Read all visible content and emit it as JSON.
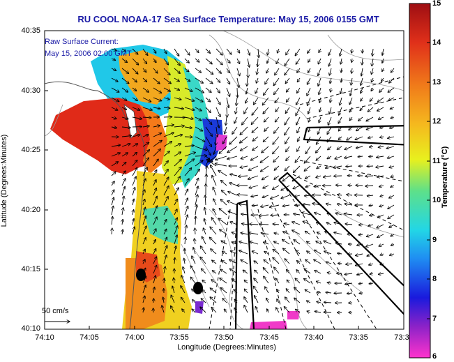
{
  "chart_data": {
    "type": "heatmap",
    "title": "RU COOL  NOAA-17  Sea Surface Temperature:  May 15, 2006 0155 GMT",
    "annotation": [
      "Raw Surface Current:",
      "May 15, 2006 02:00 GMT"
    ],
    "xlabel": "Longitude (Degrees:Minutes)",
    "ylabel": "Latitude (Degrees:Minutes)",
    "x_ticks": [
      "74:10",
      "74:05",
      "74:00",
      "73:55",
      "73:50",
      "73:45",
      "73:40",
      "73:35",
      "73:3"
    ],
    "y_ticks": [
      "40:35",
      "40:30",
      "40:25",
      "40:20",
      "40:15",
      "40:10"
    ],
    "colorbar": {
      "label": "Temperature (°C)",
      "range": [
        6,
        15
      ],
      "ticks": [
        "15",
        "14",
        "13",
        "12",
        "11",
        "10",
        "9",
        "8",
        "7",
        "6"
      ]
    },
    "vector_scale_label": "50 cm/s",
    "colors": {
      "title": "#1a1aa6",
      "frame": "#000000"
    }
  }
}
